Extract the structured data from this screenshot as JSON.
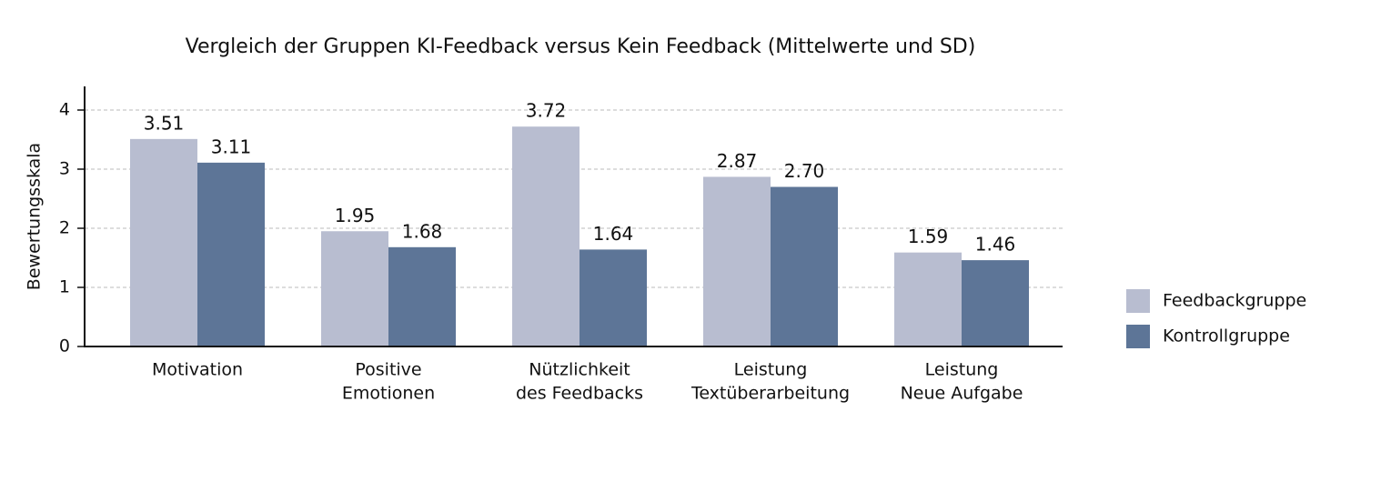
{
  "chart_data": {
    "type": "bar",
    "title": "Vergleich der Gruppen KI-Feedback versus Kein Feedback (Mittelwerte und SD)",
    "y_label": "Bewertungsskala",
    "categories": [
      [
        "Motivation"
      ],
      [
        "Positive",
        "Emotionen"
      ],
      [
        "Nützlichkeit",
        "des Feedbacks"
      ],
      [
        "Leistung",
        "Textüberarbeitung"
      ],
      [
        "Leistung",
        "Neue Aufgabe"
      ]
    ],
    "series": [
      {
        "name": "Feedbackgruppe",
        "color": "#b8bdd0",
        "values": [
          3.51,
          1.95,
          3.72,
          2.87,
          1.59
        ],
        "value_labels": [
          "3.51",
          "1.95",
          "3.72",
          "2.87",
          "1.59"
        ]
      },
      {
        "name": "Kontrollgruppe",
        "color": "#5d7597",
        "values": [
          3.11,
          1.68,
          1.64,
          2.7,
          1.46
        ],
        "value_labels": [
          "3.11",
          "1.68",
          "1.64",
          "2.70",
          "1.46"
        ]
      }
    ],
    "ylim": [
      0,
      4.4
    ],
    "yticks": [
      0,
      1,
      2,
      3,
      4
    ],
    "grid": true,
    "legend": "right"
  }
}
